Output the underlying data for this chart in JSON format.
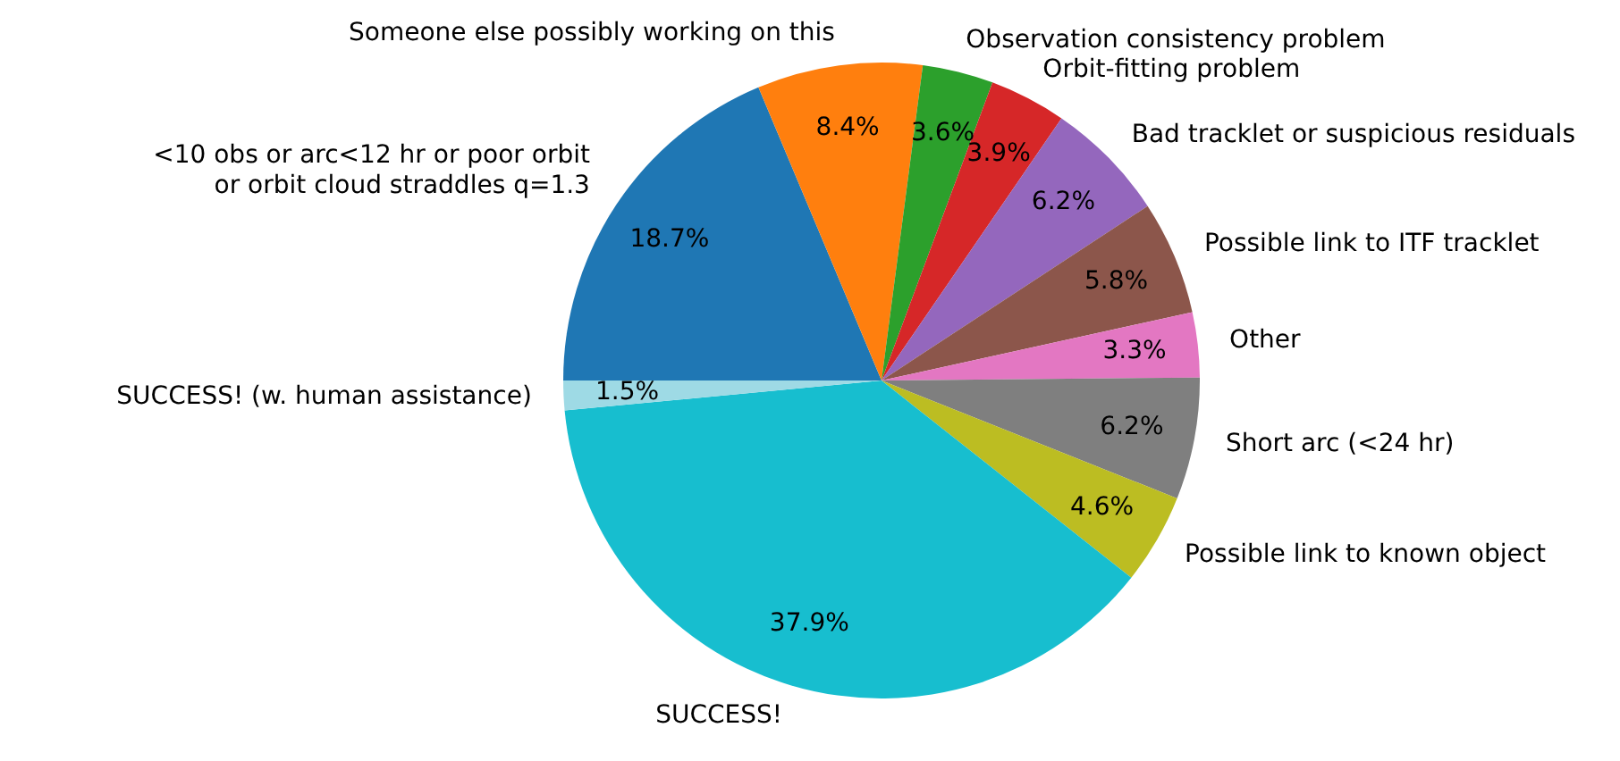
{
  "chart_data": {
    "type": "pie",
    "categories": [
      "<10 obs or arc<12 hr or poor orbit\nor orbit cloud straddles q=1.3",
      "Someone else possibly working on this",
      "Observation consistency problem",
      "Orbit-fitting problem",
      "Bad tracklet or suspicious residuals",
      "Possible link to ITF tracklet",
      "Other",
      "Short arc (<24 hr)",
      "Possible link to known object",
      "SUCCESS!",
      "SUCCESS! (w. human assistance)"
    ],
    "values": [
      18.7,
      8.4,
      3.6,
      3.9,
      6.2,
      5.8,
      3.3,
      6.2,
      4.6,
      37.9,
      1.5
    ],
    "value_labels": [
      "18.7%",
      "8.4%",
      "3.6%",
      "3.9%",
      "6.2%",
      "5.8%",
      "3.3%",
      "6.2%",
      "4.6%",
      "37.9%",
      "1.5%"
    ],
    "colors": [
      "#1f77b4",
      "#ff7f0e",
      "#2ca02c",
      "#d62728",
      "#9467bd",
      "#8c564b",
      "#e377c2",
      "#7f7f7f",
      "#bcbd22",
      "#17becf",
      "#9edae5"
    ],
    "legend": false
  }
}
